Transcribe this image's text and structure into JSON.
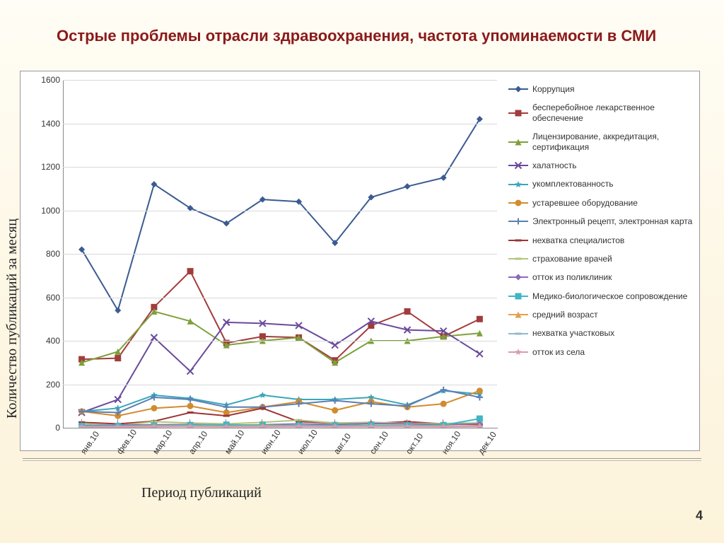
{
  "title": "Острые проблемы отрасли здравоохранения, частота упоминаемости в СМИ",
  "axis": {
    "y_title": "Количество публикаций за  месяц",
    "x_title": "Период публикаций"
  },
  "page_number": "4",
  "chart": {
    "type": "line",
    "background_color": "#ffffff",
    "grid_color": "#d9d9d9",
    "tick_color": "#888888",
    "title_color": "#8b1a1a",
    "title_fontsize": 22,
    "label_fontsize": 12,
    "ylim": [
      0,
      1600
    ],
    "ytick_step": 200,
    "x_labels": [
      "янв.10",
      "фев.10",
      "мар.10",
      "апр.10",
      "май.10",
      "июн.10",
      "июл.10",
      "авг.10",
      "сен.10",
      "окт.10",
      "ноя.10",
      "дек.10"
    ],
    "x_label_rotation_deg": -55,
    "series": [
      {
        "name": "Коррупция",
        "color": "#3b5b92",
        "marker": "diamond",
        "values": [
          820,
          540,
          1120,
          1010,
          940,
          1050,
          1040,
          850,
          1060,
          1110,
          1150,
          1420
        ]
      },
      {
        "name": "бесперебойное лекарственное обеспечение",
        "color": "#a23c3c",
        "marker": "square",
        "values": [
          315,
          320,
          555,
          720,
          390,
          420,
          415,
          310,
          470,
          535,
          420,
          500
        ]
      },
      {
        "name": "Лицензирование, аккредитация, сертификация",
        "color": "#7ea03a",
        "marker": "triangle",
        "values": [
          300,
          350,
          535,
          490,
          380,
          400,
          415,
          300,
          400,
          400,
          420,
          435
        ]
      },
      {
        "name": "халатность",
        "color": "#6a4a9c",
        "marker": "x",
        "values": [
          70,
          130,
          415,
          260,
          485,
          480,
          470,
          380,
          490,
          450,
          445,
          340
        ]
      },
      {
        "name": "укомплектованность",
        "color": "#3aa6b9",
        "marker": "star",
        "values": [
          75,
          90,
          150,
          135,
          105,
          150,
          130,
          130,
          140,
          105,
          170,
          155
        ]
      },
      {
        "name": "устаревшее оборудование",
        "color": "#d28b2d",
        "marker": "circle",
        "values": [
          75,
          55,
          90,
          100,
          70,
          95,
          120,
          80,
          120,
          95,
          110,
          170
        ]
      },
      {
        "name": "Электронный рецепт, электронная карта",
        "color": "#5b7fb4",
        "marker": "plus",
        "values": [
          75,
          70,
          140,
          130,
          95,
          95,
          110,
          125,
          110,
          100,
          175,
          140
        ]
      },
      {
        "name": "нехватка специалистов",
        "color": "#9c3434",
        "marker": "dash",
        "values": [
          25,
          18,
          30,
          70,
          55,
          90,
          28,
          22,
          20,
          28,
          18,
          15
        ]
      },
      {
        "name": "страхование врачей",
        "color": "#aec77a",
        "marker": "dash",
        "values": [
          18,
          10,
          28,
          22,
          18,
          25,
          35,
          22,
          25,
          20,
          20,
          22
        ]
      },
      {
        "name": "отток из поликлиник",
        "color": "#8b6abf",
        "marker": "diamond",
        "values": [
          10,
          12,
          14,
          15,
          12,
          14,
          18,
          15,
          20,
          18,
          15,
          18
        ]
      },
      {
        "name": "Медико-биологическое сопровождение",
        "color": "#3fb6c6",
        "marker": "square",
        "values": [
          8,
          8,
          10,
          12,
          14,
          12,
          10,
          10,
          12,
          10,
          12,
          42
        ]
      },
      {
        "name": "средний возраст",
        "color": "#e3a04a",
        "marker": "triangle",
        "values": [
          5,
          6,
          9,
          8,
          7,
          9,
          8,
          7,
          8,
          8,
          8,
          9
        ]
      },
      {
        "name": "нехватка участковых",
        "color": "#8fb8c9",
        "marker": "dash",
        "values": [
          5,
          5,
          6,
          6,
          5,
          6,
          7,
          5,
          6,
          6,
          5,
          6
        ]
      },
      {
        "name": "отток из села",
        "color": "#d89bb4",
        "marker": "star",
        "values": [
          3,
          3,
          4,
          5,
          4,
          4,
          5,
          4,
          5,
          5,
          4,
          5
        ]
      }
    ]
  }
}
